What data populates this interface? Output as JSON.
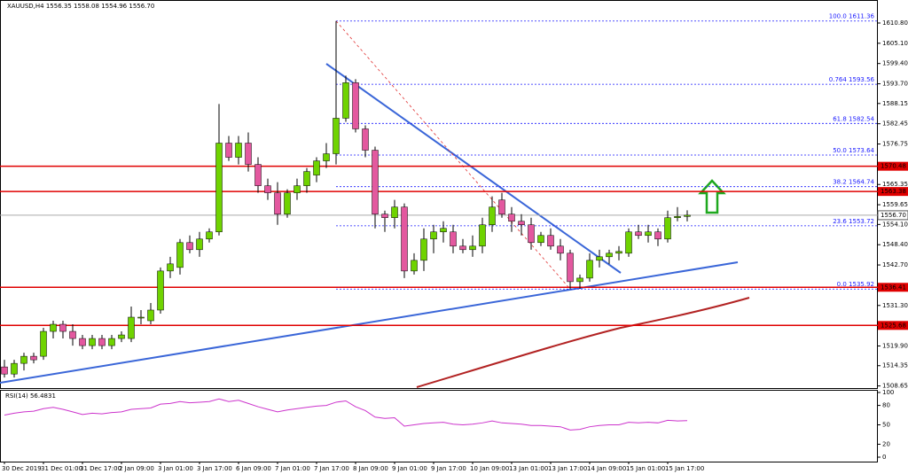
{
  "chart_data": {
    "type": "candlestick",
    "title": "XAUUSD,H4",
    "subtitle": "1556.35 1558.08 1554.96 1556.70",
    "categories": [
      "30 Dec 2019",
      null,
      null,
      null,
      "31 Dec 01:00",
      null,
      null,
      null,
      "31 Dec 17:00",
      null,
      null,
      null,
      "2 Jan 09:00",
      null,
      null,
      null,
      "3 Jan 01:00",
      null,
      null,
      null,
      "3 Jan 17:00",
      null,
      null,
      null,
      "6 Jan 09:00",
      null,
      null,
      null,
      "7 Jan 01:00",
      null,
      null,
      null,
      "7 Jan 17:00",
      null,
      null,
      null,
      "8 Jan 09:00",
      null,
      null,
      null,
      "9 Jan 01:00",
      null,
      null,
      null,
      "9 Jan 17:00",
      null,
      null,
      null,
      "10 Jan 09:00",
      null,
      null,
      null,
      "13 Jan 01:00",
      null,
      null,
      null,
      "13 Jan 17:00",
      null,
      null,
      null,
      "14 Jan 09:00",
      null,
      null,
      null,
      "15 Jan 01:00",
      null,
      null,
      null,
      "15 Jan 17:00",
      null,
      null
    ],
    "open": [
      1514,
      1512,
      1515,
      1517,
      1517,
      1524,
      1526,
      1524,
      1522,
      1520,
      1522,
      1520,
      1522,
      1522,
      1528,
      1527,
      1530,
      1541,
      1542,
      1549,
      1547,
      1550,
      1552,
      1577,
      1573,
      1577,
      1571,
      1565,
      1563,
      1557,
      1563,
      1565,
      1568,
      1572,
      1574,
      1584,
      1594,
      1581,
      1575,
      1557,
      1556,
      1559,
      1541,
      1544,
      1550,
      1552,
      1552,
      1548,
      1547,
      1548,
      1554,
      1561,
      1557,
      1555,
      1554,
      1549,
      1551,
      1548,
      1546,
      1538,
      1539,
      1544,
      1545,
      1546,
      1546,
      1552,
      1551,
      1552,
      1550,
      1556,
      1556.35
    ],
    "high": [
      1516,
      1516,
      1518,
      1518,
      1525,
      1527,
      1527,
      1526,
      1523,
      1523,
      1523,
      1523,
      1524,
      1531,
      1530,
      1532,
      1542,
      1545,
      1550,
      1551,
      1552,
      1553,
      1588,
      1579,
      1579,
      1580,
      1573,
      1567,
      1566,
      1564,
      1567,
      1570,
      1573,
      1577,
      1611.36,
      1596,
      1595,
      1582,
      1576,
      1558,
      1561,
      1560,
      1546,
      1553,
      1554,
      1555,
      1554,
      1550,
      1551,
      1556,
      1562,
      1563,
      1559,
      1557,
      1556,
      1552,
      1553,
      1550,
      1547,
      1540,
      1546,
      1547,
      1547,
      1548,
      1553,
      1554,
      1554,
      1553,
      1558,
      1559,
      1558.08
    ],
    "low": [
      1511,
      1511,
      1513,
      1515,
      1516,
      1522,
      1522,
      1520,
      1519,
      1519,
      1519,
      1519,
      1521,
      1521,
      1526,
      1526,
      1529,
      1539,
      1540,
      1546,
      1545,
      1549,
      1551,
      1572,
      1571,
      1569,
      1563,
      1561,
      1554,
      1556,
      1561,
      1563,
      1566,
      1570,
      1571,
      1583,
      1580,
      1573,
      1553,
      1552,
      1553,
      1539,
      1540,
      1541,
      1546,
      1549,
      1546,
      1546,
      1545,
      1546,
      1552,
      1556,
      1552,
      1551,
      1547,
      1548,
      1547,
      1544,
      1535.92,
      1536,
      1538,
      1542,
      1543,
      1544,
      1545,
      1550,
      1549,
      1548,
      1549,
      1555,
      1554.96
    ],
    "close": [
      1512,
      1515,
      1517,
      1516,
      1524,
      1526,
      1524,
      1522,
      1520,
      1522,
      1520,
      1522,
      1523,
      1528,
      1528,
      1530,
      1541,
      1543,
      1549,
      1547,
      1550,
      1552,
      1577,
      1573,
      1577,
      1571,
      1565,
      1563,
      1557,
      1563,
      1565,
      1569,
      1572,
      1574,
      1584,
      1594,
      1581,
      1575,
      1557,
      1556,
      1559,
      1541,
      1544,
      1550,
      1552,
      1553,
      1548,
      1547,
      1548,
      1554,
      1559,
      1557,
      1555,
      1554,
      1549,
      1551,
      1548,
      1546,
      1538,
      1539,
      1544,
      1545,
      1546,
      1546.5,
      1552,
      1551,
      1552,
      1550,
      1556,
      1556.35,
      1556.7
    ],
    "up_color": "#6fd300",
    "down_color": "#e3589f",
    "ylim": [
      1508.05,
      1617.28
    ],
    "yticks": [
      {
        "value": 1610.8,
        "label": "1610.80"
      },
      {
        "value": 1605.1,
        "label": "1605.10"
      },
      {
        "value": 1599.4,
        "label": "1599.40"
      },
      {
        "value": 1593.7,
        "label": "1593.70"
      },
      1588.15,
      1582.45,
      1576.75,
      1565.35,
      1559.65,
      {
        "value": 1554.1,
        "label": "1554.10"
      },
      {
        "value": 1548.4,
        "label": "1548.40"
      },
      {
        "value": 1542.7,
        "label": "1542.70"
      },
      {
        "value": 1531.3,
        "label": "1531.30"
      },
      {
        "value": 1519.9,
        "label": "1519.90"
      },
      1514.35,
      1508.65
    ],
    "levels": [
      1570.48,
      1563.38,
      1536.41,
      1525.68
    ],
    "level_color": "#e00000",
    "current_price": {
      "value": 1556.7,
      "label": "1556.70"
    },
    "fibonacci": {
      "color": "#1a1aff",
      "levels": [
        {
          "name": "100.0",
          "value": 1611.36
        },
        {
          "name": "0.764",
          "value": 1593.56
        },
        {
          "name": "61.8",
          "value": 1582.54
        },
        {
          "name": "50.0",
          "value": 1573.64
        },
        {
          "name": "38.2",
          "value": 1564.74
        },
        {
          "name": "23.6",
          "value": 1553.72
        },
        {
          "name": "0.0",
          "value": 1535.92
        }
      ]
    },
    "rsi": {
      "title": "RSI(14) 56.4831",
      "color": "#cc33cc",
      "values": [
        65,
        68,
        70,
        71,
        75,
        77,
        74,
        70,
        66,
        68,
        67,
        69,
        70,
        74,
        75,
        76,
        82,
        83,
        86,
        84,
        85,
        86,
        90,
        86,
        88,
        83,
        78,
        74,
        70,
        73,
        75,
        77,
        79,
        80,
        85,
        87,
        78,
        72,
        62,
        60,
        61,
        48,
        50,
        52,
        53,
        54,
        51,
        50,
        51,
        53,
        56,
        53,
        52,
        51,
        49,
        49,
        48,
        47,
        42,
        43,
        47,
        49,
        50,
        50,
        54,
        53,
        54,
        53,
        57,
        56,
        56.4831
      ],
      "ylim": [
        0,
        100
      ],
      "yticks": [
        100,
        80,
        50,
        20,
        0
      ]
    }
  }
}
